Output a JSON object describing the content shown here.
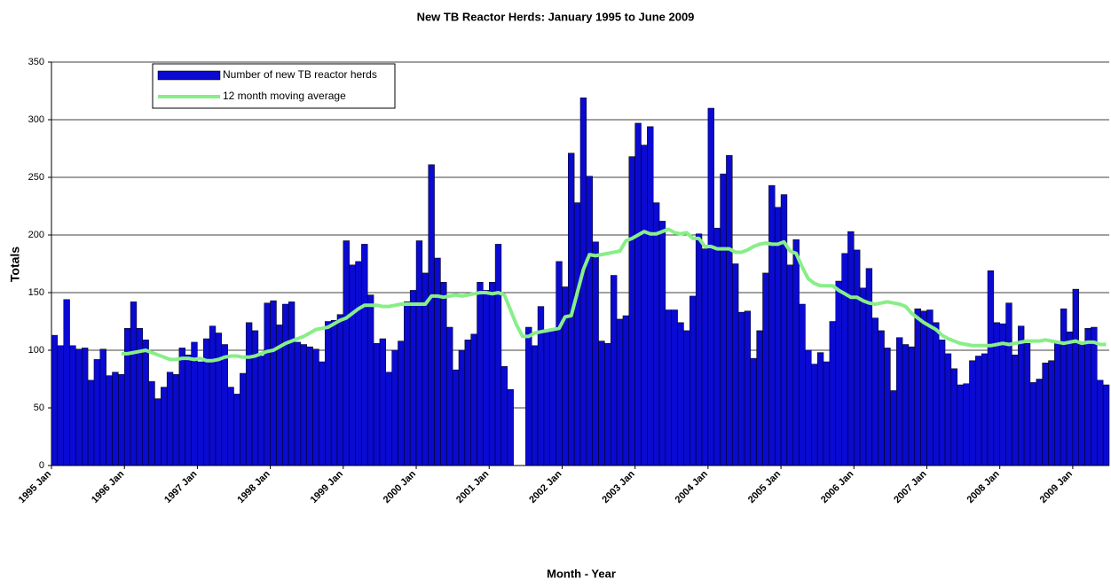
{
  "chart_data": {
    "type": "bar",
    "title": "New TB Reactor Herds: January 1995 to June 2009",
    "x_label": "Month - Year",
    "y_label": "Totals",
    "categories": [
      "1995 Jan",
      null,
      null,
      null,
      null,
      null,
      null,
      null,
      null,
      null,
      null,
      null,
      "1996 Jan",
      null,
      null,
      null,
      null,
      null,
      null,
      null,
      null,
      null,
      null,
      null,
      "1997 Jan",
      null,
      null,
      null,
      null,
      null,
      null,
      null,
      null,
      null,
      null,
      null,
      "1998 Jan",
      null,
      null,
      null,
      null,
      null,
      null,
      null,
      null,
      null,
      null,
      null,
      "1999 Jan",
      null,
      null,
      null,
      null,
      null,
      null,
      null,
      null,
      null,
      null,
      null,
      "2000 Jan",
      null,
      null,
      null,
      null,
      null,
      null,
      null,
      null,
      null,
      null,
      null,
      "2001 Jan",
      null,
      null,
      null,
      null,
      null,
      null,
      null,
      null,
      null,
      null,
      null,
      "2002 Jan",
      null,
      null,
      null,
      null,
      null,
      null,
      null,
      null,
      null,
      null,
      null,
      "2003 Jan",
      null,
      null,
      null,
      null,
      null,
      null,
      null,
      null,
      null,
      null,
      null,
      "2004 Jan",
      null,
      null,
      null,
      null,
      null,
      null,
      null,
      null,
      null,
      null,
      null,
      "2005 Jan",
      null,
      null,
      null,
      null,
      null,
      null,
      null,
      null,
      null,
      null,
      null,
      "2006 Jan",
      null,
      null,
      null,
      null,
      null,
      null,
      null,
      null,
      null,
      null,
      null,
      "2007 Jan",
      null,
      null,
      null,
      null,
      null,
      null,
      null,
      null,
      null,
      null,
      null,
      "2008 Jan",
      null,
      null,
      null,
      null,
      null,
      null,
      null,
      null,
      null,
      null,
      null,
      "2009 Jan",
      null,
      null,
      null,
      null,
      null
    ],
    "series": [
      {
        "name": "Number of new TB reactor herds",
        "type": "bar",
        "color": "#0a0ad0",
        "values": [
          113,
          104,
          144,
          104,
          101,
          102,
          74,
          92,
          101,
          78,
          81,
          79,
          119,
          142,
          119,
          109,
          73,
          58,
          68,
          81,
          79,
          102,
          96,
          107,
          90,
          110,
          121,
          115,
          105,
          68,
          62,
          80,
          124,
          117,
          95,
          141,
          143,
          122,
          140,
          142,
          107,
          105,
          103,
          101,
          90,
          125,
          126,
          131,
          195,
          174,
          177,
          192,
          148,
          106,
          110,
          81,
          100,
          108,
          142,
          152,
          195,
          167,
          261,
          180,
          159,
          120,
          83,
          100,
          109,
          114,
          159,
          152,
          159,
          192,
          86,
          66,
          null,
          null,
          120,
          104,
          138,
          116,
          117,
          177,
          155,
          271,
          228,
          319,
          251,
          194,
          108,
          106,
          165,
          127,
          130,
          268,
          297,
          278,
          294,
          228,
          212,
          135,
          135,
          124,
          117,
          147,
          201,
          188,
          310,
          206,
          253,
          269,
          175,
          133,
          134,
          93,
          117,
          167,
          243,
          224,
          235,
          174,
          196,
          140,
          100,
          88,
          98,
          90,
          125,
          160,
          184,
          203,
          187,
          154,
          171,
          128,
          117,
          102,
          65,
          111,
          105,
          103,
          136,
          134,
          135,
          124,
          109,
          97,
          84,
          70,
          71,
          91,
          95,
          97,
          169,
          124,
          123,
          141,
          96,
          121,
          106,
          72,
          75,
          89,
          91,
          106,
          136,
          116,
          153,
          107,
          119,
          120,
          74,
          70
        ]
      },
      {
        "name": "12 month moving average",
        "type": "line",
        "color": "#88ee88",
        "values": [
          null,
          null,
          null,
          null,
          null,
          null,
          null,
          null,
          null,
          null,
          null,
          97,
          97,
          98,
          99,
          100,
          98,
          96,
          94,
          92,
          92,
          93,
          93,
          92,
          93,
          91,
          91,
          92,
          94,
          95,
          95,
          94,
          94,
          95,
          97,
          99,
          100,
          103,
          106,
          108,
          110,
          112,
          115,
          118,
          119,
          120,
          123,
          126,
          128,
          132,
          136,
          139,
          139,
          139,
          138,
          138,
          139,
          140,
          140,
          140,
          140,
          140,
          147,
          147,
          146,
          147,
          148,
          147,
          148,
          149,
          150,
          150,
          149,
          150,
          148,
          135,
          122,
          112,
          112,
          115,
          116,
          117,
          118,
          119,
          129,
          130,
          150,
          170,
          183,
          182,
          183,
          184,
          185,
          186,
          195,
          197,
          200,
          203,
          201,
          201,
          203,
          205,
          202,
          201,
          202,
          197,
          197,
          190,
          190,
          188,
          188,
          188,
          185,
          185,
          187,
          190,
          192,
          193,
          192,
          192,
          194,
          186,
          184,
          172,
          162,
          158,
          156,
          156,
          156,
          152,
          149,
          146,
          146,
          143,
          141,
          140,
          141,
          142,
          141,
          140,
          138,
          132,
          128,
          124,
          121,
          118,
          113,
          110,
          108,
          106,
          105,
          104,
          104,
          104,
          104,
          105,
          106,
          105,
          106,
          107,
          108,
          108,
          108,
          109,
          108,
          107,
          106,
          107,
          108,
          106,
          107,
          107,
          105,
          105
        ]
      }
    ],
    "ylim": [
      0,
      350
    ],
    "yticks": [
      0,
      50,
      100,
      150,
      200,
      250,
      300,
      350
    ],
    "grid": true,
    "legend": "top-left"
  }
}
